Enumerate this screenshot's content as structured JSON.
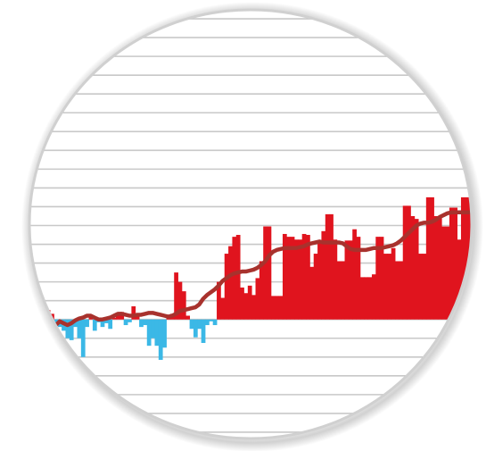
{
  "chart_data": {
    "type": "bar",
    "title": "",
    "xlabel": "",
    "ylabel": "",
    "grid": true,
    "legend": "none",
    "ylim": [
      -14,
      34
    ],
    "colors": {
      "positive": "#e0141e",
      "negative": "#3bb8e6",
      "smoothed_line": "#a8322d",
      "gridline": "#c8c8c8",
      "lens_border": "#d0d0d0"
    },
    "series": [
      {
        "type": "bar",
        "values": [
          -2.6,
          -3.6,
          -1.2,
          -0.4,
          -1.0,
          1.0,
          0.6,
          -0.4,
          -0.8,
          -1.2,
          -2.0,
          -2.2,
          -0.8,
          -2.0,
          -4.0,
          -0.8,
          0.3,
          -1.2,
          -0.3,
          -0.8,
          -0.4,
          -1.0,
          0.2,
          0.6,
          0.8,
          -0.6,
          -0.3,
          1.4,
          0.6,
          -0.8,
          -0.6,
          -2.8,
          -2.0,
          -2.8,
          -4.3,
          -3.0,
          0.2,
          0.6,
          5.0,
          4.0,
          3.0,
          0.4,
          -1.0,
          -1.9,
          -1.0,
          -2.5,
          -0.6,
          -0.2,
          -0.6,
          4.0,
          2.3,
          7.0,
          7.8,
          8.8,
          9.0,
          3.4,
          2.8,
          3.6,
          2.6,
          4.4,
          6.2,
          9.9,
          9.9,
          2.5,
          2.5,
          2.5,
          9.1,
          8.8,
          8.8,
          8.5,
          8.5,
          9.1,
          9.0,
          5.6,
          7.0,
          8.4,
          9.4,
          11.2,
          11.2,
          8.5,
          6.2,
          6.2,
          8.4,
          8.4,
          9.6,
          8.8,
          4.5,
          4.5,
          4.5,
          4.8,
          8.8,
          8.8,
          7.0,
          7.0,
          7.6,
          6.2,
          6.2,
          12.1,
          12.1,
          11.0,
          10.7,
          7.0,
          7.0,
          13.0,
          13.0,
          11.0,
          11.0,
          9.9,
          9.9,
          11.9,
          11.9,
          8.5,
          13.0,
          13.0,
          13.0
        ]
      },
      {
        "type": "line",
        "values": [
          -0.3,
          -0.6,
          -1.4,
          -1.8,
          -1.9,
          -1.6,
          -1.2,
          -0.6,
          -0.2,
          -0.4,
          -0.6,
          -0.4,
          -0.1,
          0.1,
          0.2,
          0.4,
          0.4,
          0.2,
          0.0,
          0.0,
          0.1,
          0.2,
          0.4,
          0.6,
          0.6,
          0.5,
          0.4,
          0.4,
          0.5,
          0.5,
          0.6,
          0.7,
          0.7,
          0.6,
          0.5,
          0.4,
          0.3,
          0.4,
          0.6,
          0.9,
          1.0,
          1.1,
          1.2,
          1.3,
          1.6,
          2.2,
          2.6,
          2.9,
          3.2,
          3.6,
          4.1,
          4.4,
          4.7,
          4.9,
          5.0,
          5.1,
          5.1,
          5.2,
          5.3,
          5.5,
          5.8,
          6.2,
          6.8,
          7.2,
          7.4,
          7.5,
          7.6,
          7.6,
          7.6,
          7.6,
          7.7,
          7.8,
          8.0,
          8.1,
          8.2,
          8.3,
          8.2,
          8.2,
          8.2,
          8.2,
          8.2,
          8.1,
          7.8,
          7.5,
          7.4,
          7.4,
          7.4,
          7.4,
          7.5,
          7.6,
          7.6,
          7.6,
          7.7,
          7.8,
          7.9,
          8.1,
          8.4,
          8.8,
          9.2,
          9.6,
          10.0,
          10.2,
          10.3,
          10.3,
          10.4,
          10.6,
          10.9,
          11.1,
          11.3,
          11.4,
          11.4,
          11.4,
          11.4,
          11.4,
          11.4
        ]
      }
    ]
  }
}
